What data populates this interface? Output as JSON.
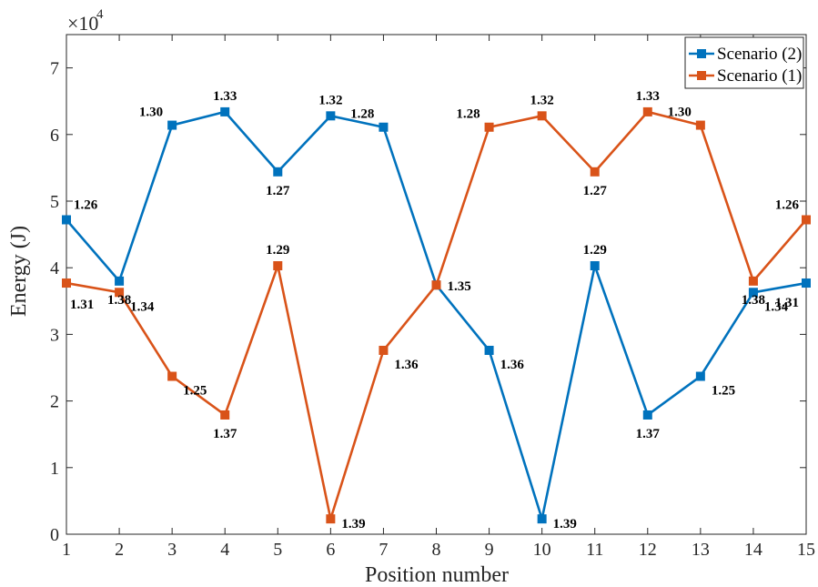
{
  "chart_data": {
    "type": "line",
    "x": [
      1,
      2,
      3,
      4,
      5,
      6,
      7,
      8,
      9,
      10,
      11,
      12,
      13,
      14,
      15
    ],
    "xlabel": "Position number",
    "ylabel": "Energy (J)",
    "y_multiplier": "×10",
    "y_multiplier_exp": "4",
    "ylim": [
      0,
      7.5
    ],
    "xlim": [
      1,
      15
    ],
    "yticks": [
      "0",
      "1",
      "2",
      "3",
      "4",
      "5",
      "6",
      "7"
    ],
    "xticks": [
      "1",
      "2",
      "3",
      "4",
      "5",
      "6",
      "7",
      "8",
      "9",
      "10",
      "11",
      "12",
      "13",
      "14",
      "15"
    ],
    "grid": false,
    "legend_position": "top-right",
    "series": [
      {
        "name": "Scenario (2)",
        "color": "#0072BD",
        "values": [
          4.72,
          3.8,
          6.14,
          6.34,
          5.44,
          6.28,
          6.11,
          3.74,
          2.76,
          0.23,
          4.03,
          1.79,
          2.37,
          3.63,
          3.77
        ],
        "labels": [
          "1.26",
          "1.38",
          "1.30",
          "1.33",
          "1.27",
          "1.32",
          "1.28",
          "1.35",
          "1.36",
          "1.39",
          "1.29",
          "1.37",
          "1.25",
          "1.34",
          "1.31"
        ]
      },
      {
        "name": "Scenario (1)",
        "color": "#D95319",
        "values": [
          3.77,
          3.63,
          2.37,
          1.79,
          4.03,
          0.23,
          2.76,
          3.74,
          6.11,
          6.28,
          5.44,
          6.34,
          6.14,
          3.8,
          4.72
        ],
        "labels": [
          "1.31",
          "1.34",
          "1.25",
          "1.37",
          "1.29",
          "1.39",
          "1.36",
          "",
          "1.28",
          "1.32",
          "1.27",
          "1.33",
          "1.30",
          "1.38",
          "1.26"
        ]
      }
    ]
  }
}
